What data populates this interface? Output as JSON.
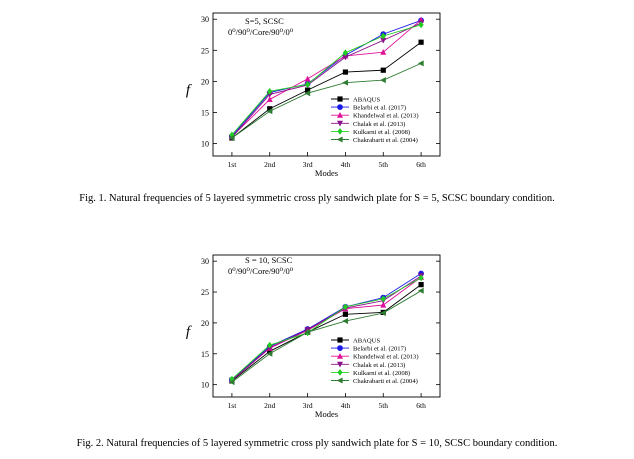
{
  "captions": [
    "Fig. 1. Natural frequencies of 5 layered symmetric cross ply sandwich plate for S = 5, SCSC boundary condition.",
    "Fig. 2. Natural frequencies of 5 layered symmetric cross ply sandwich plate for S = 10, SCSC boundary condition."
  ],
  "chart_data": [
    {
      "type": "line",
      "annotation": [
        "S=5, SCSC",
        "0⁰/90⁰/Core/90⁰/0⁰"
      ],
      "xlabel": "Modes",
      "ylabel": "f",
      "categories": [
        "1st",
        "2nd",
        "3rd",
        "4th",
        "5th",
        "6th"
      ],
      "ylim": [
        8,
        31
      ],
      "yticks": [
        10,
        15,
        20,
        25,
        30
      ],
      "legend_position": "bottom-right",
      "series": [
        {
          "name": "ABAQUS",
          "color": "#000000",
          "marker": "square",
          "values": [
            10.9,
            15.6,
            18.6,
            21.5,
            21.8,
            26.3
          ]
        },
        {
          "name": "Belarbi et al. (2017)",
          "color": "#1a1ae6",
          "marker": "circle",
          "values": [
            11.2,
            18.2,
            19.6,
            24.2,
            27.6,
            29.8
          ]
        },
        {
          "name": "Khandelwal et al. (2013)",
          "color": "#e0109a",
          "marker": "triangle-up",
          "values": [
            11.1,
            17.1,
            20.4,
            24.1,
            24.7,
            29.9
          ]
        },
        {
          "name": "Chalak et al. (2013)",
          "color": "#8a0f8a",
          "marker": "triangle-down",
          "values": [
            11.0,
            17.9,
            19.4,
            23.9,
            26.6,
            29.4
          ]
        },
        {
          "name": "Kulkarni et al. (2008)",
          "color": "#22cc22",
          "marker": "diamond",
          "values": [
            11.4,
            18.4,
            19.5,
            24.6,
            27.3,
            29.1
          ]
        },
        {
          "name": "Chakrabarti et al. (2004)",
          "color": "#2e7d32",
          "marker": "triangle-left",
          "values": [
            10.9,
            15.2,
            18.1,
            19.8,
            20.2,
            22.9
          ]
        }
      ]
    },
    {
      "type": "line",
      "annotation": [
        "S = 10, SCSC",
        "0⁰/90⁰/Core/90⁰/0⁰"
      ],
      "xlabel": "Modes",
      "ylabel": "f",
      "categories": [
        "1st",
        "2nd",
        "3rd",
        "4th",
        "5th",
        "6th"
      ],
      "ylim": [
        8,
        31
      ],
      "yticks": [
        10,
        15,
        20,
        25,
        30
      ],
      "legend_position": "bottom-right",
      "series": [
        {
          "name": "ABAQUS",
          "color": "#000000",
          "marker": "square",
          "values": [
            10.6,
            15.4,
            18.5,
            21.4,
            21.7,
            26.2
          ]
        },
        {
          "name": "Belarbi et al. (2017)",
          "color": "#1a1ae6",
          "marker": "circle",
          "values": [
            10.8,
            16.2,
            19.0,
            22.6,
            24.1,
            28.0
          ]
        },
        {
          "name": "Khandelwal et al. (2013)",
          "color": "#e0109a",
          "marker": "triangle-up",
          "values": [
            10.7,
            15.9,
            18.8,
            22.3,
            22.9,
            27.4
          ]
        },
        {
          "name": "Chalak et al. (2013)",
          "color": "#8a0f8a",
          "marker": "triangle-down",
          "values": [
            10.7,
            16.0,
            18.9,
            22.4,
            23.6,
            27.6
          ]
        },
        {
          "name": "Kulkarni et al. (2008)",
          "color": "#22cc22",
          "marker": "diamond",
          "values": [
            10.9,
            16.4,
            18.4,
            22.6,
            23.9,
            27.3
          ]
        },
        {
          "name": "Chakrabarti et al. (2004)",
          "color": "#2e7d32",
          "marker": "triangle-left",
          "values": [
            10.4,
            15.0,
            18.5,
            20.3,
            21.6,
            25.2
          ]
        }
      ]
    }
  ]
}
